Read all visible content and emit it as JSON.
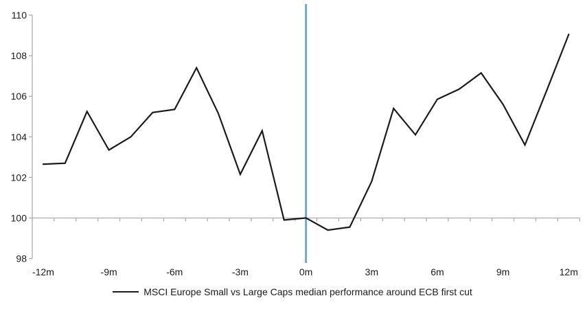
{
  "chart_data": {
    "type": "line",
    "title": "",
    "legend": "MSCI Europe Small vs Large Caps median performance around ECB first cut",
    "x": [
      -12,
      -11,
      -10,
      -9,
      -8,
      -7,
      -6,
      -5,
      -4,
      -3,
      -2,
      -1,
      0,
      1,
      2,
      3,
      4,
      5,
      6,
      7,
      8,
      9,
      10,
      11,
      12
    ],
    "series": [
      {
        "name": "MSCI Europe Small vs Large Caps median performance around ECB first cut",
        "values": [
          102.65,
          102.7,
          105.25,
          103.35,
          104.0,
          105.2,
          105.35,
          107.4,
          105.15,
          102.15,
          104.3,
          99.9,
          100.0,
          99.4,
          99.55,
          101.8,
          105.4,
          104.1,
          105.85,
          106.35,
          107.15,
          105.6,
          103.6,
          106.3,
          109.05
        ],
        "color": "#1a1a1a"
      }
    ],
    "x_tick_labels": [
      "-12m",
      "-9m",
      "-6m",
      "-3m",
      "0m",
      "3m",
      "6m",
      "9m",
      "12m"
    ],
    "x_tick_positions": [
      -12,
      -9,
      -6,
      -3,
      0,
      3,
      6,
      9,
      12
    ],
    "y_ticks": [
      98,
      100,
      102,
      104,
      106,
      108,
      110
    ],
    "ylim": [
      98,
      110
    ],
    "xlim": [
      -12.5,
      12.5
    ],
    "baseline_value": 100,
    "event_line": {
      "x": 0,
      "color": "#7CA5CE"
    },
    "axis_color": "#A6A6A6",
    "text_color": "#1a1a1a",
    "grid": false,
    "legend_position": "bottom-center"
  }
}
